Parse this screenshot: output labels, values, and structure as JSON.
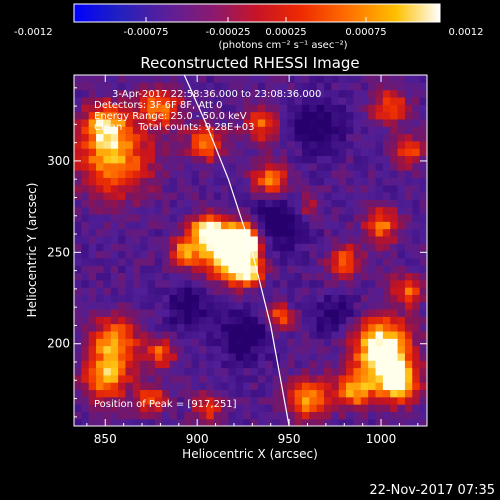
{
  "colorbar": {
    "tick_labels": [
      "-0.0012",
      "-0.00075",
      "-0.00025",
      "0.00025",
      "0.00075",
      "0.0012"
    ],
    "units_label": "(photons cm⁻² s⁻¹ asec⁻²)"
  },
  "chart_data": {
    "type": "heatmap",
    "title": "Reconstructed RHESSI Image",
    "xlabel": "Heliocentric X (arcsec)",
    "ylabel": "Heliocentric Y (arcsec)",
    "xlim": [
      833,
      1025
    ],
    "ylim": [
      155,
      347
    ],
    "x_ticks": [
      850,
      900,
      950,
      1000
    ],
    "y_ticks": [
      200,
      250,
      300
    ],
    "colormap": "fire (purple-red-orange-yellow-white)",
    "color_range": [
      -0.0012,
      0.0012
    ],
    "annotations": [
      "3-Apr-2017 22:58:36.000 to 23:08:36.000",
      "Detectors: 3F 6F 8F, Att 0",
      "Energy Range: 25.0 - 50.0 keV",
      "Clean     Total counts: 9.28E+03"
    ],
    "peak_label": "Position of Peak = [917,251]",
    "peak": [
      917,
      251
    ],
    "limb_curve": [
      [
        893,
        347
      ],
      [
        905,
        320
      ],
      [
        917,
        290
      ],
      [
        930,
        250
      ],
      [
        940,
        210
      ],
      [
        950,
        155
      ]
    ],
    "blobs": [
      {
        "x": 917,
        "y": 251,
        "r": 14,
        "v": 1.0
      },
      {
        "x": 925,
        "y": 257,
        "r": 8,
        "v": 0.95
      },
      {
        "x": 905,
        "y": 262,
        "r": 9,
        "v": 0.7
      },
      {
        "x": 927,
        "y": 240,
        "r": 8,
        "v": 0.7
      },
      {
        "x": 893,
        "y": 250,
        "r": 8,
        "v": 0.55
      },
      {
        "x": 1000,
        "y": 198,
        "r": 16,
        "v": 0.85
      },
      {
        "x": 1008,
        "y": 180,
        "r": 12,
        "v": 0.75
      },
      {
        "x": 985,
        "y": 175,
        "r": 10,
        "v": 0.6
      },
      {
        "x": 960,
        "y": 170,
        "r": 12,
        "v": 0.55
      },
      {
        "x": 855,
        "y": 300,
        "r": 20,
        "v": 0.6
      },
      {
        "x": 850,
        "y": 320,
        "r": 12,
        "v": 0.55
      },
      {
        "x": 880,
        "y": 330,
        "r": 12,
        "v": 0.5
      },
      {
        "x": 905,
        "y": 310,
        "r": 10,
        "v": 0.5
      },
      {
        "x": 940,
        "y": 290,
        "r": 10,
        "v": 0.55
      },
      {
        "x": 935,
        "y": 320,
        "r": 10,
        "v": 0.45
      },
      {
        "x": 1005,
        "y": 330,
        "r": 10,
        "v": 0.45
      },
      {
        "x": 1015,
        "y": 305,
        "r": 8,
        "v": 0.45
      },
      {
        "x": 855,
        "y": 200,
        "r": 14,
        "v": 0.6
      },
      {
        "x": 850,
        "y": 180,
        "r": 12,
        "v": 0.55
      },
      {
        "x": 880,
        "y": 195,
        "r": 8,
        "v": 0.45
      },
      {
        "x": 875,
        "y": 170,
        "r": 8,
        "v": 0.45
      },
      {
        "x": 905,
        "y": 165,
        "r": 8,
        "v": 0.4
      },
      {
        "x": 945,
        "y": 215,
        "r": 7,
        "v": 0.45
      },
      {
        "x": 980,
        "y": 245,
        "r": 9,
        "v": 0.5
      },
      {
        "x": 1000,
        "y": 265,
        "r": 10,
        "v": 0.5
      },
      {
        "x": 1015,
        "y": 230,
        "r": 9,
        "v": 0.45
      },
      {
        "x": 960,
        "y": 275,
        "r": 8,
        "v": 0.35
      }
    ],
    "dips": [
      {
        "x": 945,
        "y": 268,
        "r": 16,
        "v": 0.35
      },
      {
        "x": 965,
        "y": 320,
        "r": 14,
        "v": 0.3
      },
      {
        "x": 925,
        "y": 205,
        "r": 14,
        "v": 0.3
      },
      {
        "x": 895,
        "y": 220,
        "r": 12,
        "v": 0.25
      },
      {
        "x": 975,
        "y": 215,
        "r": 12,
        "v": 0.25
      }
    ]
  },
  "timestamp": "22-Nov-2017 07:35"
}
